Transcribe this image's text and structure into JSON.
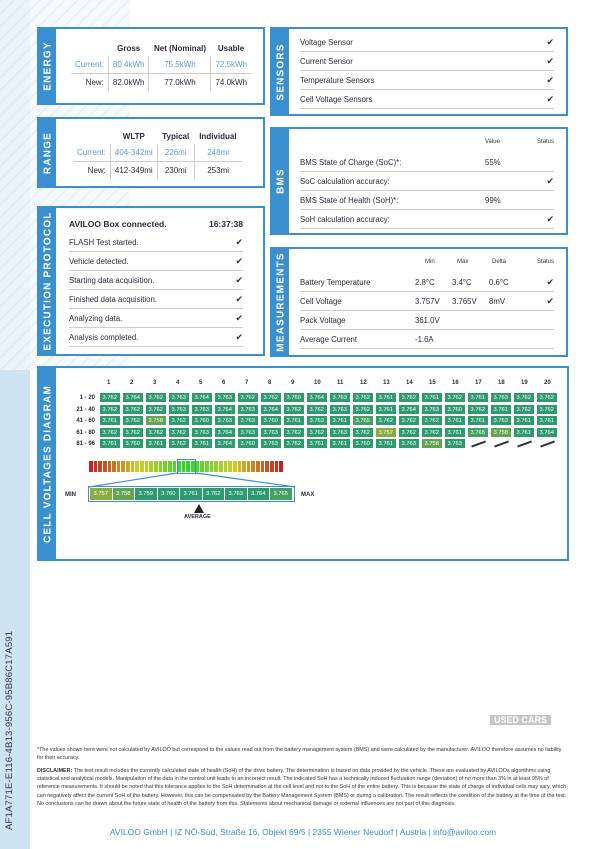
{
  "vehicle_id": "AF1A771E-E116-4B13-956C-95B86C17A591",
  "energy": {
    "title": "ENERGY",
    "headers": [
      "Gross",
      "Net (Nominal)",
      "Usable"
    ],
    "current_label": "Current:",
    "current": [
      "80.4kWh",
      "75.5kWh",
      "72.5kWh"
    ],
    "new_label": "New:",
    "new": [
      "82.0kWh",
      "77.0kWh",
      "74.0kWh"
    ]
  },
  "range": {
    "title": "RANGE",
    "headers": [
      "WLTP",
      "Typical",
      "Individual"
    ],
    "current_label": "Current:",
    "current": [
      "404-342mi",
      "226mi",
      "248mi"
    ],
    "new_label": "New:",
    "new": [
      "412-349mi",
      "230mi",
      "253mi"
    ]
  },
  "execution": {
    "title": "EXECUTION PROTOCOL",
    "header": "AVILOO Box connected.",
    "time": "16:37:38",
    "items": [
      "FLASH Test started.",
      "Vehicle detected.",
      "Starting data acquisition.",
      "Finished data acquisition.",
      "Analyzing data.",
      "Analysis completed."
    ]
  },
  "sensors": {
    "title": "SENSORS",
    "items": [
      "Voltage Sensor",
      "Current Sensor",
      "Temperature Sensors",
      "Cell Voltage Sensors"
    ]
  },
  "bms": {
    "title": "BMS",
    "col_value": "Value",
    "col_status": "Status",
    "rows": [
      {
        "label": "BMS State of Charge (SoC)*:",
        "value": "55%",
        "check": false
      },
      {
        "label": "SoC calculation accuracy:",
        "value": "",
        "check": true
      },
      {
        "label": "BMS State of Health (SoH)*:",
        "value": "99%",
        "check": false
      },
      {
        "label": "SoH calculation accuracy:",
        "value": "",
        "check": true
      }
    ]
  },
  "measurements": {
    "title": "MEASUREMENTS",
    "cols": [
      "Min",
      "Max",
      "Delta",
      "Status"
    ],
    "rows": [
      {
        "label": "Battery Temperature",
        "min": "2.8°C",
        "max": "3.4°C",
        "delta": "0.6°C",
        "check": true
      },
      {
        "label": "Cell Voltage",
        "min": "3.757V",
        "max": "3.765V",
        "delta": "8mV",
        "check": true
      },
      {
        "label": "Pack Voltage",
        "min": "361.0V",
        "max": "",
        "delta": "",
        "check": false
      },
      {
        "label": "Average Current",
        "min": "-1.6A",
        "max": "",
        "delta": "",
        "check": false
      }
    ]
  },
  "cells": {
    "title": "CELL VOLTAGES DIAGRAM",
    "columns": [
      "1",
      "2",
      "3",
      "4",
      "5",
      "6",
      "7",
      "8",
      "9",
      "10",
      "11",
      "12",
      "13",
      "14",
      "15",
      "16",
      "17",
      "18",
      "19",
      "20"
    ],
    "rows": [
      {
        "label": "1 - 20",
        "values": [
          "3.762",
          "3.764",
          "3.762",
          "3.763",
          "3.764",
          "3.763",
          "3.762",
          "3.762",
          "3.760",
          "3.764",
          "3.763",
          "3.762",
          "3.761",
          "3.762",
          "3.761",
          "3.762",
          "3.761",
          "3.763",
          "3.762",
          "3.762"
        ]
      },
      {
        "label": "21 - 40",
        "values": [
          "3.762",
          "3.762",
          "3.762",
          "3.763",
          "3.763",
          "3.764",
          "3.763",
          "3.764",
          "3.762",
          "3.762",
          "3.763",
          "3.762",
          "3.761",
          "3.764",
          "3.763",
          "3.760",
          "3.762",
          "3.761",
          "3.762",
          "3.762"
        ]
      },
      {
        "label": "41 - 60",
        "values": [
          "3.761",
          "3.762",
          "3.758",
          "3.762",
          "3.760",
          "3.763",
          "3.763",
          "3.760",
          "3.761",
          "3.763",
          "3.761",
          "3.765",
          "3.762",
          "3.762",
          "3.762",
          "3.761",
          "3.761",
          "3.763",
          "3.761",
          "3.761"
        ]
      },
      {
        "label": "61 - 80",
        "values": [
          "3.762",
          "3.762",
          "3.762",
          "3.762",
          "3.763",
          "3.764",
          "3.763",
          "3.763",
          "3.762",
          "3.762",
          "3.763",
          "3.762",
          "3.757",
          "3.762",
          "3.762",
          "3.761",
          "3.765",
          "3.758",
          "3.761",
          "3.764"
        ]
      },
      {
        "label": "81 - 96",
        "values": [
          "3.761",
          "3.760",
          "3.761",
          "3.762",
          "3.761",
          "3.764",
          "3.760",
          "3.763",
          "3.762",
          "3.761",
          "3.761",
          "3.760",
          "3.761",
          "3.763",
          "3.758",
          "3.763"
        ]
      }
    ],
    "scale": [
      "3.757",
      "3.758",
      "3.759",
      "3.760",
      "3.761",
      "3.762",
      "3.763",
      "3.764",
      "3.765"
    ],
    "min_label": "MIN",
    "max_label": "MAX",
    "average_label": "AVERAGE",
    "average_value": "3.762"
  },
  "colors": {
    "accent": "#3a8fcf",
    "cell": "#2e9a6e"
  },
  "footnote": "*The values shown here were not calculated by AVILOO but correspond to the values read out from the battery management system (BMS) and were calculated by the manufacturer. AVILOO therefore assumes no liability for their accuracy.",
  "disclaimer_label": "DISCLAIMER:",
  "disclaimer": " The test result includes the currently calculated state of health (SoH) of the drive battery. The determination is based on data provided by the vehicle. These are evaluated by AVILOOs algorithms using statistical and analytical models. Manipulation of the data in the control unit leads to an incorrect result. The indicated SoH has a technically induced fluctuation range (deviation) of no more than 3% in at least 95% of reference measurements. It should be noted that this tolerance applies to the SoH determination at the cell level and not to the SoH of the entire battery. This is because the state of charge of individual cells may vary, which can negatively affect the current SoH of the battery. However, this can be compensated by the Battery Management System (BMS) or during a calibration. The result reflects the condition of the battery at the time of the test. No conclusions can be drawn about the future state of health of the battery from this. Statements about mechanical damage or external influences are not part of this diagnosis.",
  "address": "AVILOO GmbH | IZ NÖ-Süd, Straße 16, Objekt 69/5 | 2355 Wiener Neudorf | Austria | info@aviloo.com",
  "watermark": "USED CARS"
}
